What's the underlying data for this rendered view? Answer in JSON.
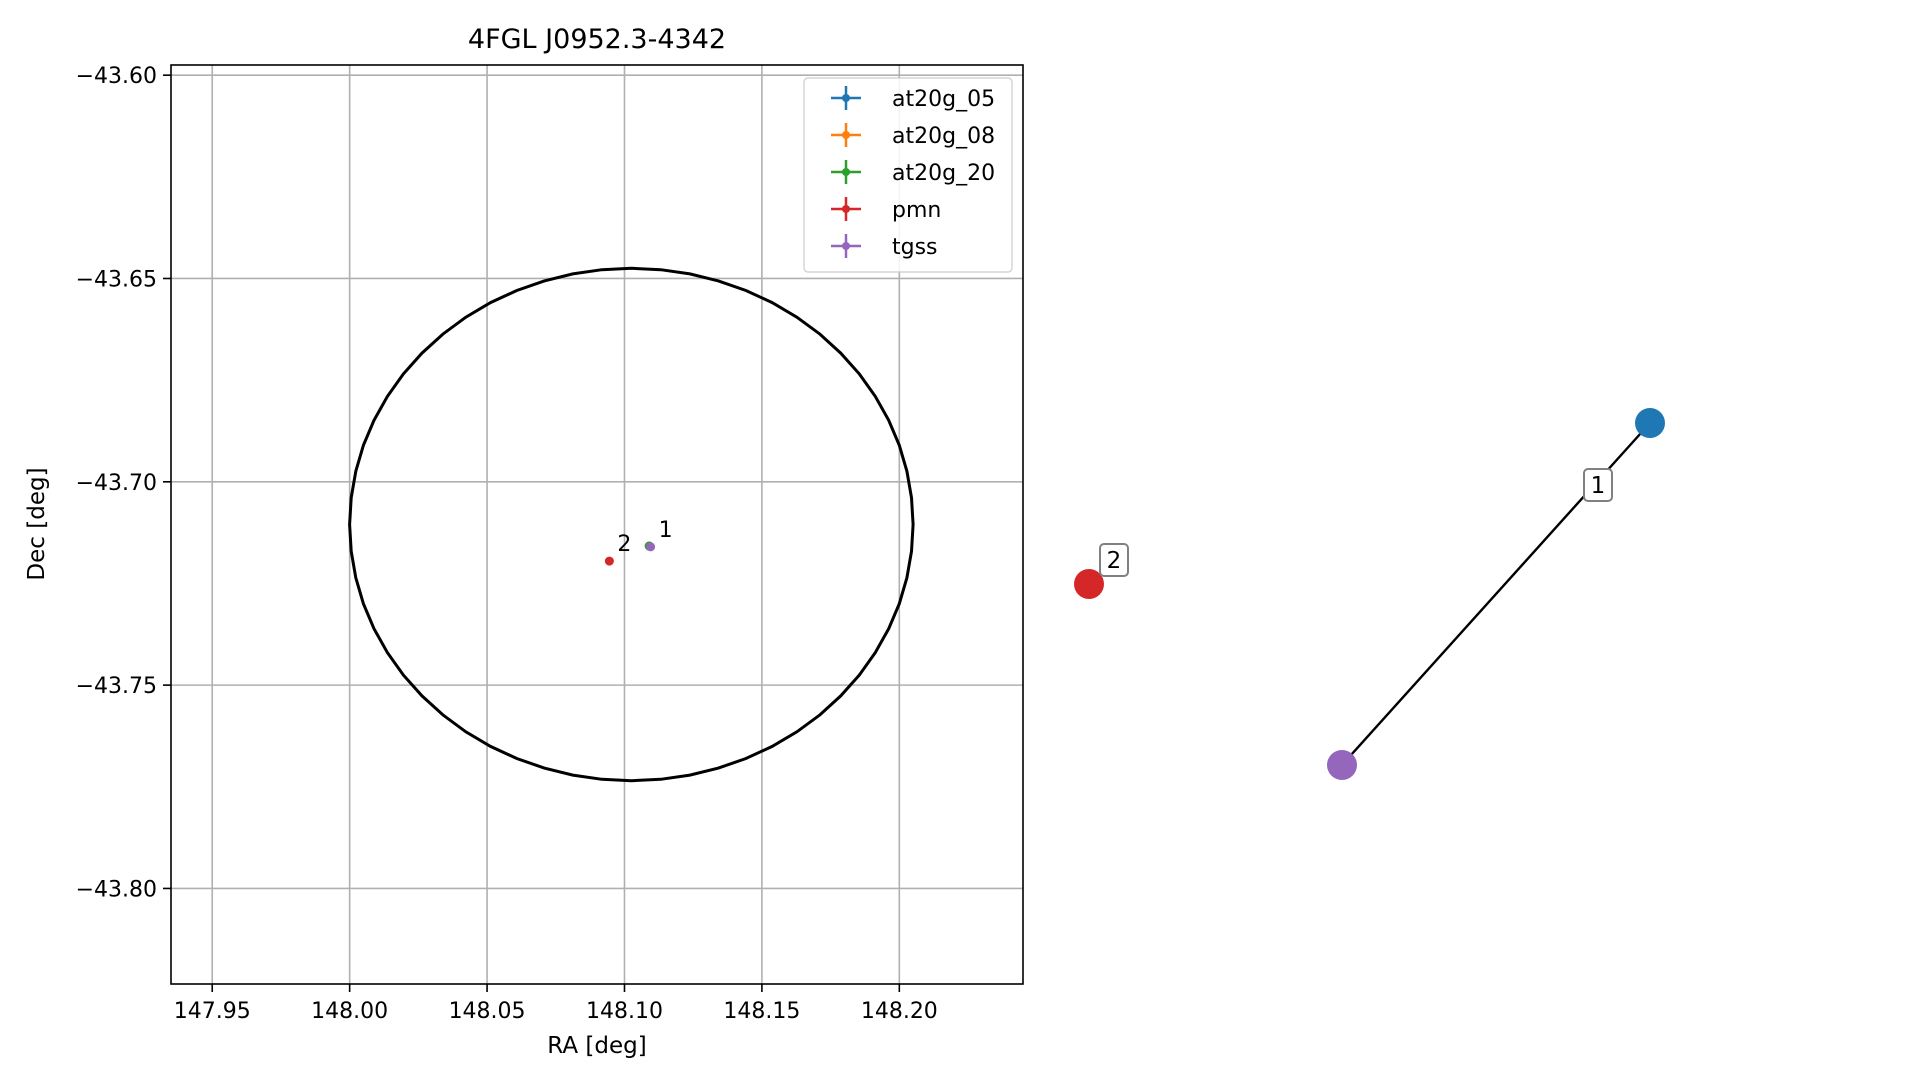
{
  "chart_data": [
    {
      "type": "scatter",
      "title": "4FGL J0952.3-4342",
      "xlabel": "RA [deg]",
      "ylabel": "Dec [deg]",
      "xlim": [
        147.935,
        148.245
      ],
      "ylim": [
        -43.8235,
        -43.5975
      ],
      "xticks": [
        147.95,
        148.0,
        148.05,
        148.1,
        148.15,
        148.2
      ],
      "xtick_labels": [
        "147.95",
        "148.00",
        "148.05",
        "148.10",
        "148.15",
        "148.20"
      ],
      "yticks": [
        -43.6,
        -43.65,
        -43.7,
        -43.75,
        -43.8
      ],
      "ytick_labels": [
        "−43.60",
        "−43.65",
        "−43.70",
        "−43.75",
        "−43.80"
      ],
      "grid": true,
      "legend_position": "top-right",
      "ellipse": {
        "center": [
          148.1025,
          -43.7105
        ],
        "semi_axis_ra": 0.1025,
        "semi_axis_dec": 0.063
      },
      "series": [
        {
          "name": "at20g_05",
          "color": "#1f77b4",
          "points": [
            {
              "x": 148.109,
              "y": -43.7158
            }
          ]
        },
        {
          "name": "at20g_08",
          "color": "#ff7f0e",
          "points": [
            {
              "x": 148.109,
              "y": -43.7158
            }
          ]
        },
        {
          "name": "at20g_20",
          "color": "#2ca02c",
          "points": [
            {
              "x": 148.109,
              "y": -43.7158
            }
          ]
        },
        {
          "name": "pmn",
          "color": "#d62728",
          "points": [
            {
              "x": 148.0945,
              "y": -43.7195
            }
          ]
        },
        {
          "name": "tgss",
          "color": "#9467bd",
          "points": [
            {
              "x": 148.1095,
              "y": -43.716
            }
          ]
        }
      ],
      "point_labels": [
        {
          "text": "1",
          "x": 148.1095,
          "y": -43.716
        },
        {
          "text": "2",
          "x": 148.0945,
          "y": -43.7195
        }
      ]
    },
    {
      "type": "network",
      "nodes": [
        {
          "id": "blue",
          "color": "#1f77b4"
        },
        {
          "id": "purple",
          "color": "#9467bd"
        },
        {
          "id": "red",
          "color": "#d62728"
        }
      ],
      "edges": [
        {
          "from": "blue",
          "to": "purple",
          "label": "1"
        }
      ],
      "node_labels": [
        {
          "node": "red",
          "label": "2"
        }
      ]
    }
  ]
}
